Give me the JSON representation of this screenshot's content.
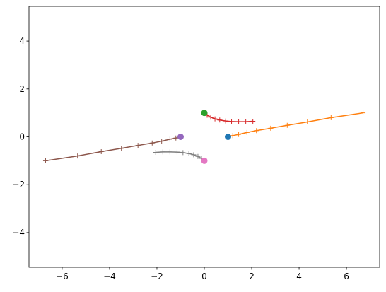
{
  "chart_data": {
    "type": "line",
    "title": "",
    "xlabel": "",
    "ylabel": "",
    "xlim": [
      -7.4,
      7.4
    ],
    "ylim": [
      -5.45,
      5.45
    ],
    "grid": false,
    "xticks": [
      -6,
      -4,
      -2,
      0,
      2,
      4,
      6
    ],
    "yticks": [
      -4,
      -2,
      0,
      2,
      4
    ],
    "xtick_labels": [
      "−6",
      "−4",
      "−2",
      "0",
      "2",
      "4",
      "6"
    ],
    "ytick_labels": [
      "−4",
      "−2",
      "0",
      "2",
      "4"
    ],
    "series": [
      {
        "color": "#ff7f0e",
        "marker": "plus",
        "start_marker_color": "#1f77b4",
        "points": [
          [
            1.0,
            0.0
          ],
          [
            1.2,
            0.05
          ],
          [
            1.45,
            0.1
          ],
          [
            1.8,
            0.18
          ],
          [
            2.2,
            0.26
          ],
          [
            2.8,
            0.36
          ],
          [
            3.5,
            0.48
          ],
          [
            4.35,
            0.62
          ],
          [
            5.35,
            0.8
          ],
          [
            6.7,
            1.0
          ]
        ]
      },
      {
        "color": "#d62728",
        "marker": "plus",
        "start_marker_color": "#2ca02c",
        "points": [
          [
            0.0,
            1.0
          ],
          [
            0.12,
            0.9
          ],
          [
            0.27,
            0.82
          ],
          [
            0.45,
            0.75
          ],
          [
            0.65,
            0.7
          ],
          [
            0.9,
            0.66
          ],
          [
            1.15,
            0.64
          ],
          [
            1.45,
            0.63
          ],
          [
            1.75,
            0.63
          ],
          [
            2.05,
            0.65
          ]
        ]
      },
      {
        "color": "#8c564b",
        "marker": "plus",
        "start_marker_color": "#9467bd",
        "points": [
          [
            -1.0,
            0.0
          ],
          [
            -1.2,
            -0.05
          ],
          [
            -1.45,
            -0.1
          ],
          [
            -1.8,
            -0.18
          ],
          [
            -2.2,
            -0.26
          ],
          [
            -2.8,
            -0.36
          ],
          [
            -3.5,
            -0.48
          ],
          [
            -4.35,
            -0.62
          ],
          [
            -5.35,
            -0.8
          ],
          [
            -6.7,
            -1.0
          ]
        ]
      },
      {
        "color": "#7f7f7f",
        "marker": "plus",
        "start_marker_color": "#e377c2",
        "points": [
          [
            0.0,
            -1.0
          ],
          [
            -0.12,
            -0.9
          ],
          [
            -0.27,
            -0.82
          ],
          [
            -0.45,
            -0.75
          ],
          [
            -0.65,
            -0.7
          ],
          [
            -0.9,
            -0.66
          ],
          [
            -1.15,
            -0.64
          ],
          [
            -1.45,
            -0.63
          ],
          [
            -1.75,
            -0.63
          ],
          [
            -2.05,
            -0.65
          ]
        ]
      }
    ]
  }
}
